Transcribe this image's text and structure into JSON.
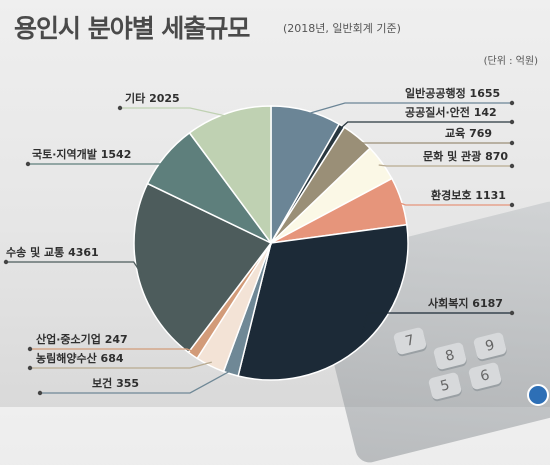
{
  "title": "용인시 분야별 세출규모",
  "subtitle": "(2018년, 일반회계 기준)",
  "unit": "(단위 : 억원)",
  "chart_data": {
    "type": "pie",
    "title": "용인시 분야별 세출규모",
    "subtitle": "(2018년, 일반회계 기준)",
    "unit": "억원",
    "slices": [
      {
        "label": "일반공공행정",
        "value": 1655,
        "color": "#6b8596"
      },
      {
        "label": "공공질서·안전",
        "value": 142,
        "color": "#29373f"
      },
      {
        "label": "교육",
        "value": 769,
        "color": "#9a8f77"
      },
      {
        "label": "문화 및 관광",
        "value": 870,
        "color": "#fbf8e6"
      },
      {
        "label": "환경보호",
        "value": 1131,
        "color": "#e6957b"
      },
      {
        "label": "사회복지",
        "value": 6187,
        "color": "#1c2a37"
      },
      {
        "label": "보건",
        "value": 355,
        "color": "#6f8896"
      },
      {
        "label": "농림해양수산",
        "value": 684,
        "color": "#f3e3d6"
      },
      {
        "label": "산업·중소기업",
        "value": 247,
        "color": "#d29b79"
      },
      {
        "label": "수송 및 교통",
        "value": 4361,
        "color": "#4d5c5c"
      },
      {
        "label": "국토·지역개발",
        "value": 1542,
        "color": "#5e7f7c"
      },
      {
        "label": "기타",
        "value": 2025,
        "color": "#bfd1b2"
      }
    ]
  }
}
